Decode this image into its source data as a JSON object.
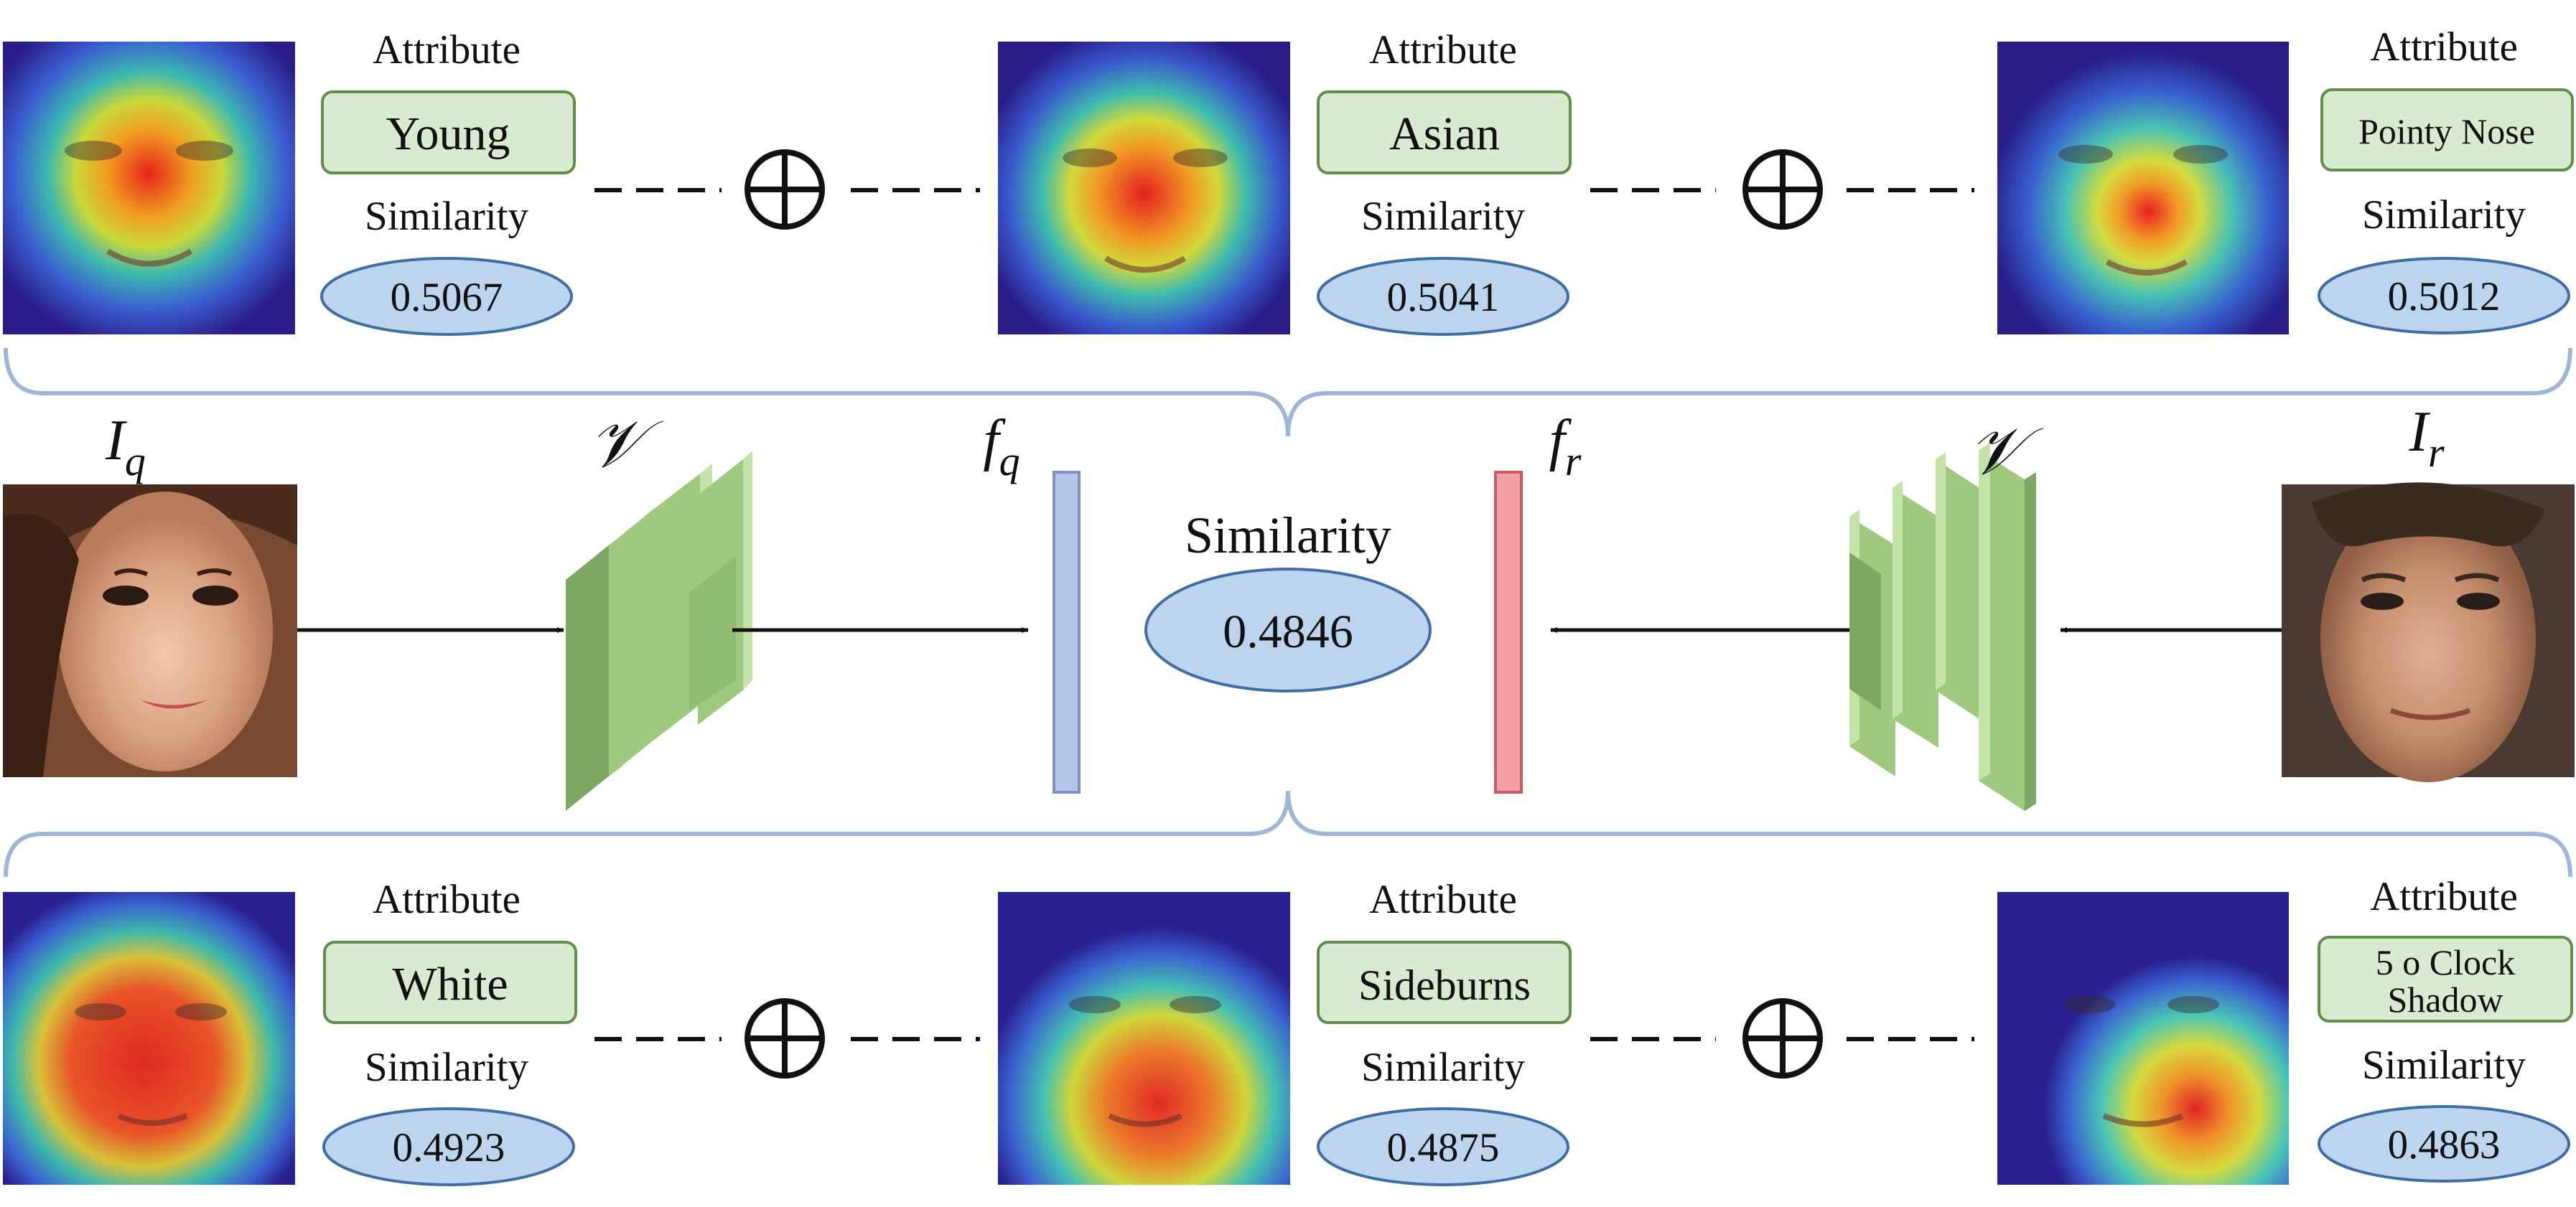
{
  "top_row": [
    {
      "attribute_label": "Attribute",
      "attribute": "Young",
      "similarity_label": "Similarity",
      "similarity": "0.5067"
    },
    {
      "attribute_label": "Attribute",
      "attribute": "Asian",
      "similarity_label": "Similarity",
      "similarity": "0.5041"
    },
    {
      "attribute_label": "Attribute",
      "attribute": "Pointy Nose",
      "similarity_label": "Similarity",
      "similarity": "0.5012"
    }
  ],
  "bottom_row": [
    {
      "attribute_label": "Attribute",
      "attribute": "White",
      "similarity_label": "Similarity",
      "similarity": "0.4923"
    },
    {
      "attribute_label": "Attribute",
      "attribute": "Sideburns",
      "similarity_label": "Similarity",
      "similarity": "0.4875"
    },
    {
      "attribute_label": "Attribute",
      "attribute_line1": "5 o Clock",
      "attribute_line2": "Shadow",
      "similarity_label": "Similarity",
      "similarity": "0.4863"
    }
  ],
  "middle": {
    "query_image_label": "I",
    "query_image_sub": "q",
    "reference_image_label": "I",
    "reference_image_sub": "r",
    "encoder_symbol": "𝒱",
    "query_feature_label": "f",
    "query_feature_sub": "q",
    "reference_feature_label": "f",
    "reference_feature_sub": "r",
    "similarity_label": "Similarity",
    "similarity": "0.4846"
  },
  "operator_symbol": "⊕",
  "colors": {
    "attr_fill": "#d8ead0",
    "attr_stroke": "#5f8f4a",
    "sim_fill": "#bcd4ee",
    "sim_stroke": "#3f6ea4",
    "brace": "#9fb6d6",
    "feature_q": "#b4c6e7",
    "feature_r": "#f4a0a4",
    "encoder_front": "#9ec97f",
    "encoder_side": "#7ea863",
    "encoder_top": "#c3e3a8"
  }
}
